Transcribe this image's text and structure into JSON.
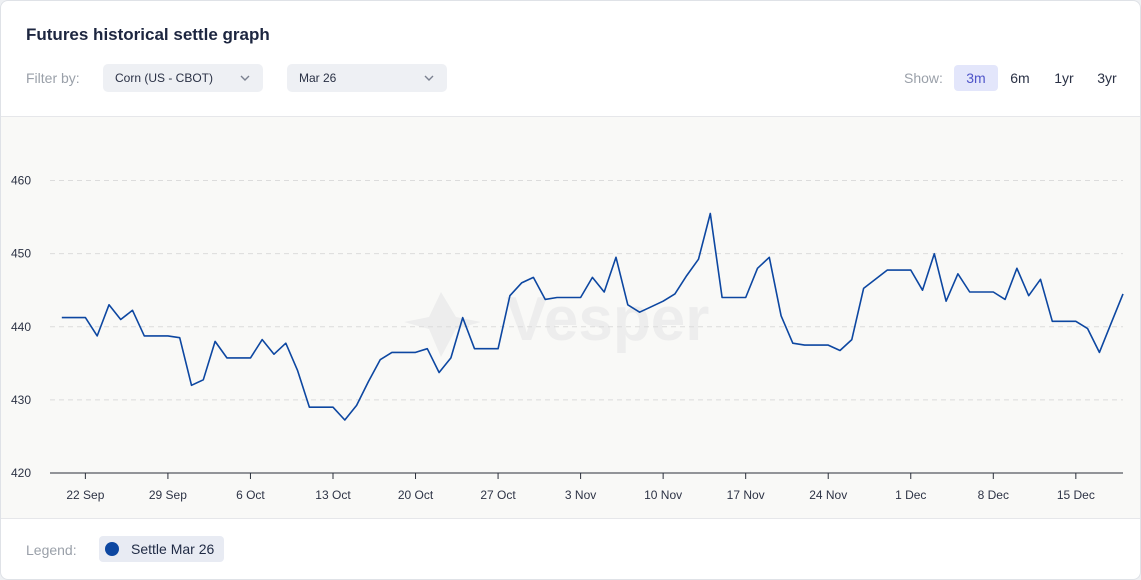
{
  "title": "Futures historical settle graph",
  "filter": {
    "label": "Filter by:",
    "commodity": "Corn (US - CBOT)",
    "contract": "Mar 26"
  },
  "show": {
    "label": "Show:",
    "options": [
      "3m",
      "6m",
      "1yr",
      "3yr"
    ],
    "selected": "3m"
  },
  "watermark": "Vesper",
  "legend": {
    "label": "Legend:",
    "entries": [
      {
        "name": "Settle Mar 26",
        "color": "#0d47a1"
      }
    ]
  },
  "colors": {
    "line": "#0d47a1",
    "accent": "#4f55c9"
  },
  "chart_data": {
    "type": "line",
    "title": "",
    "xlabel": "",
    "ylabel": "",
    "ylim": [
      420,
      465
    ],
    "yticks": [
      420,
      430,
      440,
      450,
      460
    ],
    "grid": "horizontal dashed",
    "x_range": [
      "2025-09-19",
      "2025-12-19"
    ],
    "xticks": [
      {
        "date": "2025-09-22",
        "label": "22 Sep"
      },
      {
        "date": "2025-09-29",
        "label": "29 Sep"
      },
      {
        "date": "2025-10-06",
        "label": "6 Oct"
      },
      {
        "date": "2025-10-13",
        "label": "13 Oct"
      },
      {
        "date": "2025-10-20",
        "label": "20 Oct"
      },
      {
        "date": "2025-10-27",
        "label": "27 Oct"
      },
      {
        "date": "2025-11-03",
        "label": "3 Nov"
      },
      {
        "date": "2025-11-10",
        "label": "10 Nov"
      },
      {
        "date": "2025-11-17",
        "label": "17 Nov"
      },
      {
        "date": "2025-11-24",
        "label": "24 Nov"
      },
      {
        "date": "2025-12-01",
        "label": "1 Dec"
      },
      {
        "date": "2025-12-08",
        "label": "8 Dec"
      },
      {
        "date": "2025-12-15",
        "label": "15 Dec"
      }
    ],
    "series": [
      {
        "name": "Settle Mar 26",
        "points": [
          [
            "2025-09-20",
            441.25
          ],
          [
            "2025-09-21",
            441.25
          ],
          [
            "2025-09-22",
            441.25
          ],
          [
            "2025-09-23",
            438.75
          ],
          [
            "2025-09-24",
            443.0
          ],
          [
            "2025-09-25",
            441.0
          ],
          [
            "2025-09-26",
            442.25
          ],
          [
            "2025-09-27",
            438.75
          ],
          [
            "2025-09-28",
            438.75
          ],
          [
            "2025-09-29",
            438.75
          ],
          [
            "2025-09-30",
            438.5
          ],
          [
            "2025-10-01",
            432.0
          ],
          [
            "2025-10-02",
            432.75
          ],
          [
            "2025-10-03",
            438.0
          ],
          [
            "2025-10-04",
            435.75
          ],
          [
            "2025-10-05",
            435.75
          ],
          [
            "2025-10-06",
            435.75
          ],
          [
            "2025-10-07",
            438.25
          ],
          [
            "2025-10-08",
            436.25
          ],
          [
            "2025-10-09",
            437.75
          ],
          [
            "2025-10-10",
            434.0
          ],
          [
            "2025-10-11",
            429.0
          ],
          [
            "2025-10-12",
            429.0
          ],
          [
            "2025-10-13",
            429.0
          ],
          [
            "2025-10-14",
            427.25
          ],
          [
            "2025-10-15",
            429.25
          ],
          [
            "2025-10-16",
            432.5
          ],
          [
            "2025-10-17",
            435.5
          ],
          [
            "2025-10-18",
            436.5
          ],
          [
            "2025-10-19",
            436.5
          ],
          [
            "2025-10-20",
            436.5
          ],
          [
            "2025-10-21",
            437.0
          ],
          [
            "2025-10-22",
            433.75
          ],
          [
            "2025-10-23",
            435.75
          ],
          [
            "2025-10-24",
            441.25
          ],
          [
            "2025-10-25",
            437.0
          ],
          [
            "2025-10-26",
            437.0
          ],
          [
            "2025-10-27",
            437.0
          ],
          [
            "2025-10-28",
            444.25
          ],
          [
            "2025-10-29",
            446.0
          ],
          [
            "2025-10-30",
            446.75
          ],
          [
            "2025-10-31",
            443.75
          ],
          [
            "2025-11-01",
            444.0
          ],
          [
            "2025-11-02",
            444.0
          ],
          [
            "2025-11-03",
            444.0
          ],
          [
            "2025-11-04",
            446.75
          ],
          [
            "2025-11-05",
            444.75
          ],
          [
            "2025-11-06",
            449.5
          ],
          [
            "2025-11-07",
            443.0
          ],
          [
            "2025-11-08",
            442.0
          ],
          [
            "2025-11-09",
            442.75
          ],
          [
            "2025-11-10",
            443.5
          ],
          [
            "2025-11-11",
            444.5
          ],
          [
            "2025-11-12",
            447.0
          ],
          [
            "2025-11-13",
            449.25
          ],
          [
            "2025-11-14",
            455.5
          ],
          [
            "2025-11-15",
            444.0
          ],
          [
            "2025-11-16",
            444.0
          ],
          [
            "2025-11-17",
            444.0
          ],
          [
            "2025-11-18",
            448.0
          ],
          [
            "2025-11-19",
            449.5
          ],
          [
            "2025-11-20",
            441.5
          ],
          [
            "2025-11-21",
            437.75
          ],
          [
            "2025-11-22",
            437.5
          ],
          [
            "2025-11-23",
            437.5
          ],
          [
            "2025-11-24",
            437.5
          ],
          [
            "2025-11-25",
            436.75
          ],
          [
            "2025-11-26",
            438.25
          ],
          [
            "2025-11-27",
            445.25
          ],
          [
            "2025-11-28",
            446.5
          ],
          [
            "2025-11-29",
            447.75
          ],
          [
            "2025-11-30",
            447.75
          ],
          [
            "2025-12-01",
            447.75
          ],
          [
            "2025-12-02",
            445.0
          ],
          [
            "2025-12-03",
            450.0
          ],
          [
            "2025-12-04",
            443.5
          ],
          [
            "2025-12-05",
            447.25
          ],
          [
            "2025-12-06",
            444.75
          ],
          [
            "2025-12-07",
            444.75
          ],
          [
            "2025-12-08",
            444.75
          ],
          [
            "2025-12-09",
            443.75
          ],
          [
            "2025-12-10",
            448.0
          ],
          [
            "2025-12-11",
            444.25
          ],
          [
            "2025-12-12",
            446.5
          ],
          [
            "2025-12-13",
            440.75
          ],
          [
            "2025-12-14",
            440.75
          ],
          [
            "2025-12-15",
            440.75
          ],
          [
            "2025-12-16",
            439.75
          ],
          [
            "2025-12-17",
            436.5
          ],
          [
            "2025-12-18",
            440.5
          ],
          [
            "2025-12-19",
            444.5
          ]
        ]
      }
    ]
  }
}
